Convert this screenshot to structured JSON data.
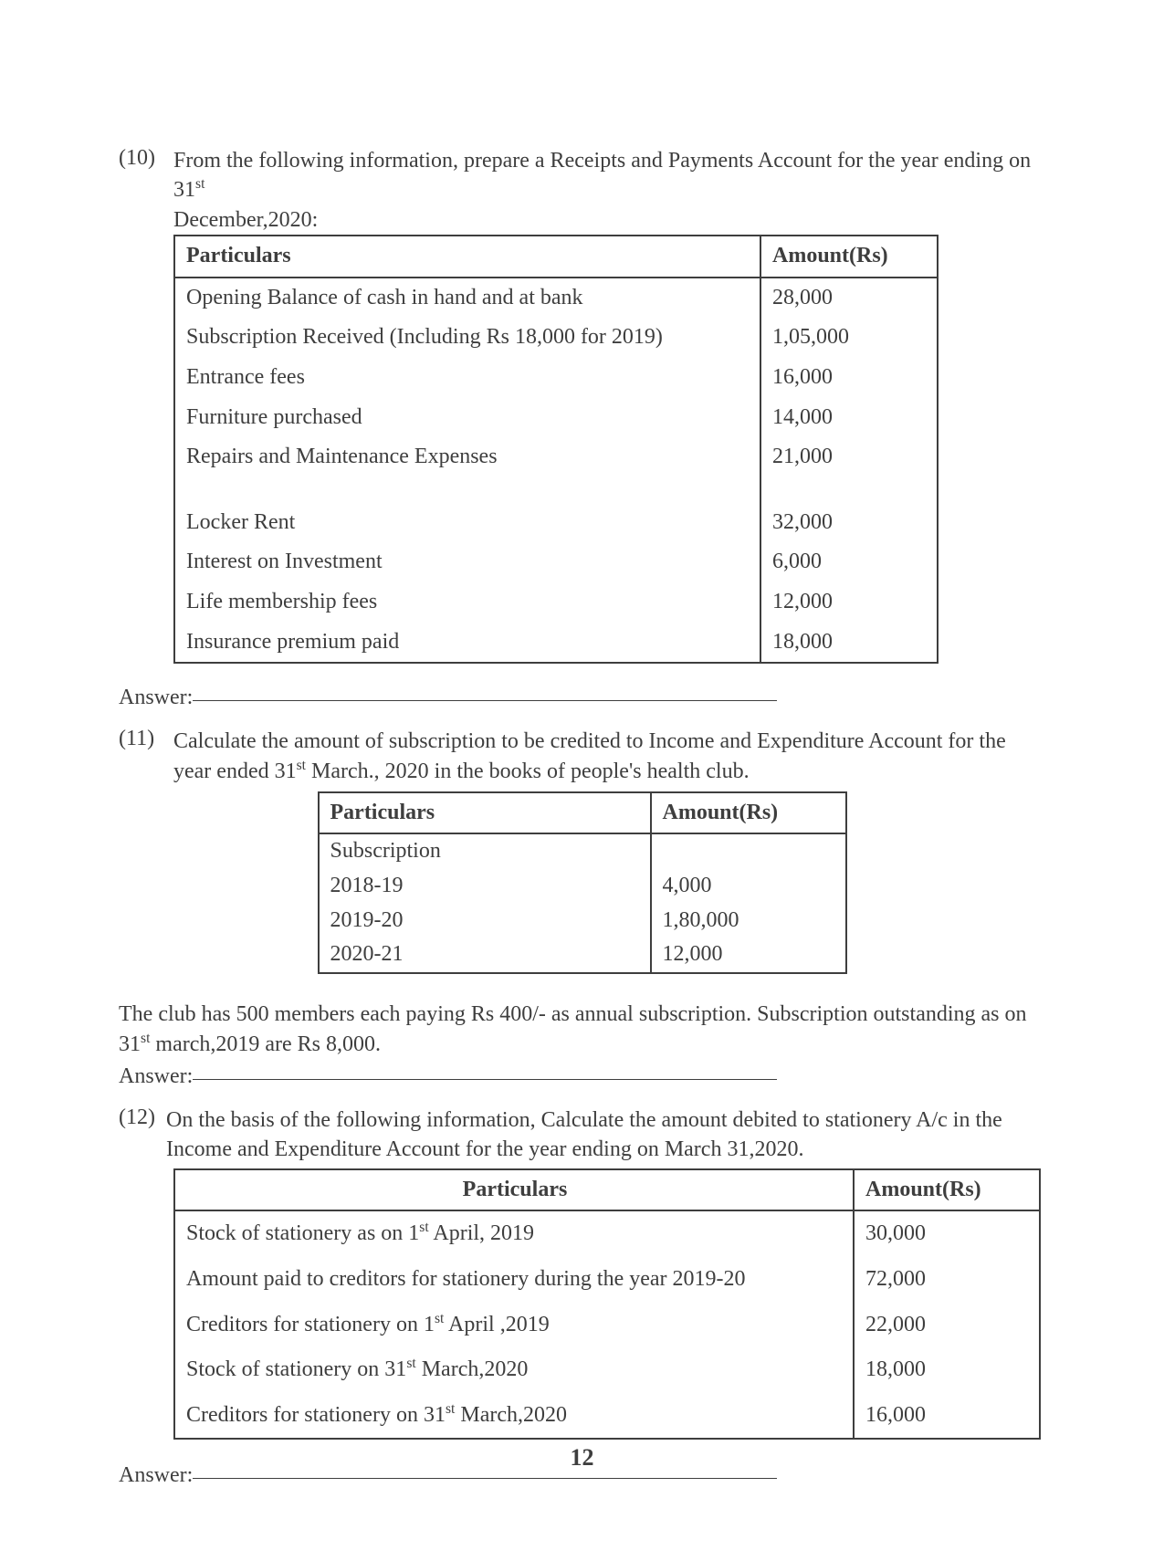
{
  "page_number": "12",
  "colors": {
    "text": "#3e3e3e",
    "border": "#3e3e3e",
    "background": "#ffffff"
  },
  "q10": {
    "number": "(10)",
    "text_a": "From the following information, prepare a Receipts and Payments Account for the year ending on 31",
    "sup": "st",
    "text_b": "December,2020:",
    "table": {
      "col1": "Particulars",
      "col2": "Amount(Rs)",
      "rows": [
        {
          "p": "Opening Balance of cash in hand and at bank",
          "a": "28,000"
        },
        {
          "p": "Subscription Received (Including Rs 18,000 for 2019)",
          "a": "1,05,000"
        },
        {
          "p": "Entrance fees",
          "a": "16,000"
        },
        {
          "p": "Furniture purchased",
          "a": "14,000"
        },
        {
          "p": "Repairs and Maintenance Expenses",
          "a": "21,000"
        },
        {
          "p": "Locker Rent",
          "a": "32,000",
          "gap_before": true
        },
        {
          "p": "Interest on Investment",
          "a": "6,000"
        },
        {
          "p": "Life membership fees",
          "a": "12,000"
        },
        {
          "p": "Insurance premium paid",
          "a": "18,000"
        }
      ]
    },
    "answer_label": "Answer:"
  },
  "q11": {
    "number": "(11)",
    "text_a": "Calculate the amount of subscription to be credited to Income and Expenditure Account for the year ended 31",
    "sup": "st",
    "text_b": " March., 2020 in the books of people's health club.",
    "table": {
      "col1": "Particulars",
      "col2": "Amount(Rs)",
      "rows": [
        {
          "p": "Subscription",
          "a": ""
        },
        {
          "p": "2018-19",
          "a": "4,000"
        },
        {
          "p": "2019-20",
          "a": "1,80,000"
        },
        {
          "p": "2020-21",
          "a": "12,000"
        }
      ]
    },
    "note_a": "The club has 500 members each paying Rs 400/- as annual subscription. Subscription outstanding as on 31",
    "note_sup": "st",
    "note_b": " march,2019 are Rs 8,000.",
    "answer_label": "Answer:"
  },
  "q12": {
    "number": "(12)",
    "text": "On the basis of the following information, Calculate the amount debited to stationery A/c in the Income and Expenditure Account for the year ending on March 31,2020.",
    "table": {
      "col1": "Particulars",
      "col2": "Amount(Rs)",
      "rows": [
        {
          "p_pre": "Stock of stationery as on 1",
          "p_sup": "st",
          "p_post": " April, 2019",
          "a": "30,000"
        },
        {
          "p_pre": "Amount paid to creditors for stationery during the year 2019-20",
          "p_sup": "",
          "p_post": "",
          "a": "72,000"
        },
        {
          "p_pre": "Creditors for stationery on 1",
          "p_sup": "st",
          "p_post": " April ,2019",
          "a": "22,000"
        },
        {
          "p_pre": "Stock of stationery on 31",
          "p_sup": "st",
          "p_post": " March,2020",
          "a": "18,000"
        },
        {
          "p_pre": "Creditors for stationery on 31",
          "p_sup": "st",
          "p_post": " March,2020",
          "a": "16,000"
        }
      ]
    },
    "answer_label": "Answer:"
  }
}
